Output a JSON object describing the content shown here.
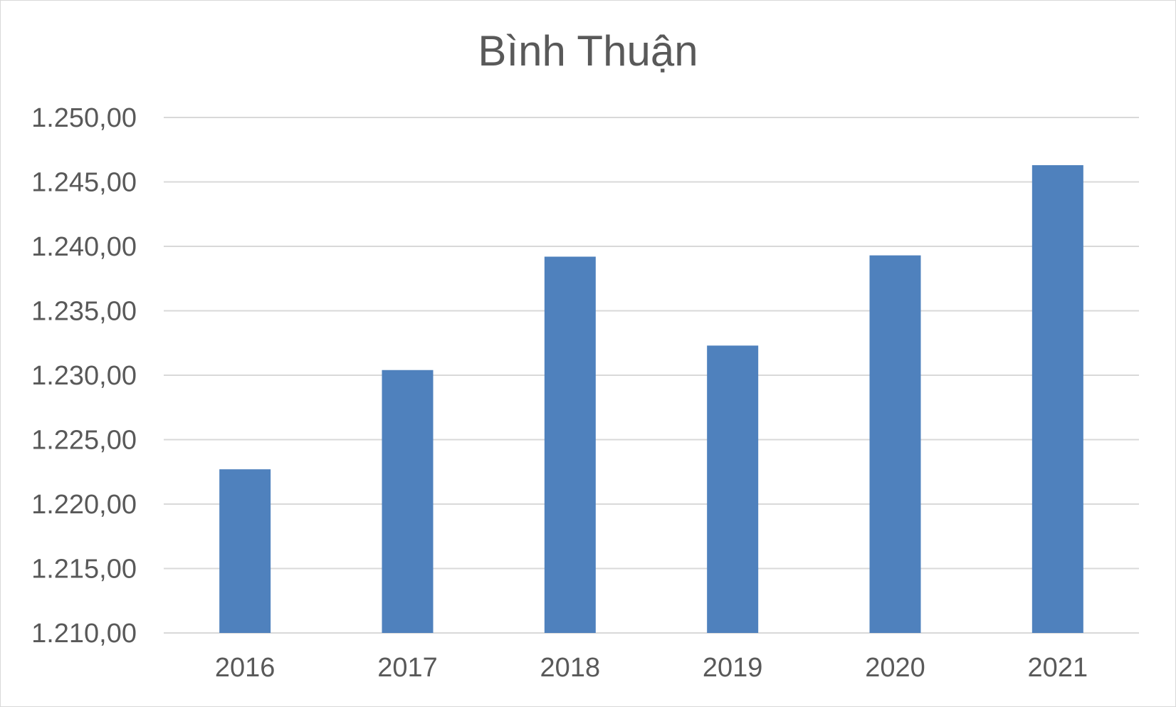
{
  "chart_data": {
    "type": "bar",
    "title": "Bình Thuận",
    "xlabel": "",
    "ylabel": "",
    "categories": [
      "2016",
      "2017",
      "2018",
      "2019",
      "2020",
      "2021"
    ],
    "values": [
      1222.7,
      1230.4,
      1239.2,
      1232.3,
      1239.3,
      1246.3
    ],
    "ylim": [
      1210,
      1250
    ],
    "yticks": [
      1210,
      1215,
      1220,
      1225,
      1230,
      1235,
      1240,
      1245,
      1250
    ],
    "ytick_labels": [
      "1.210,00",
      "1.215,00",
      "1.220,00",
      "1.225,00",
      "1.230,00",
      "1.235,00",
      "1.240,00",
      "1.245,00",
      "1.250,00"
    ],
    "grid": true,
    "legend": "none",
    "bar_color": "#4f81bd",
    "grid_color": "#d9d9d9"
  }
}
